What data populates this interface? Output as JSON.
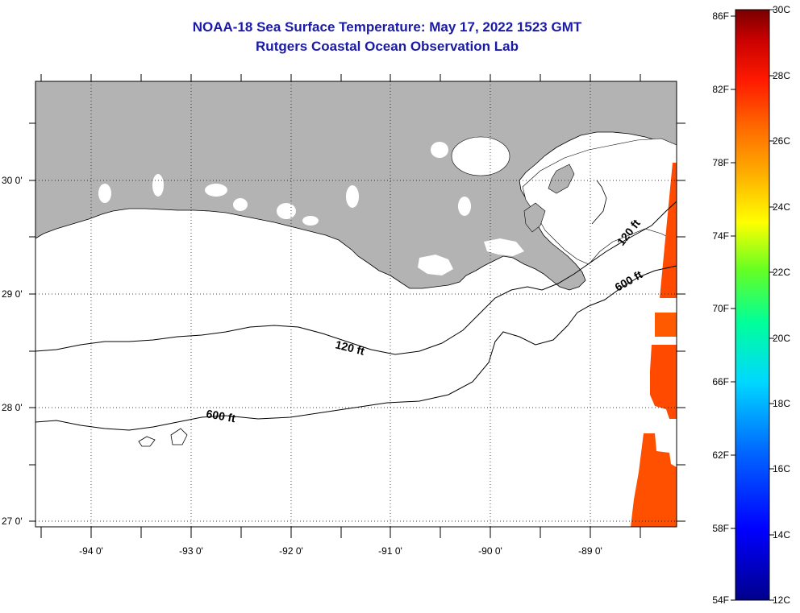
{
  "title": "NOAA-18 Sea Surface Temperature:  May 17, 2022 1523 GMT",
  "subtitle": "Rutgers Coastal Ocean Observation Lab",
  "map": {
    "lon_labels": [
      "-94 0'",
      "-93 0'",
      "-92 0'",
      "-91 0'",
      "-90 0'",
      "-89 0'"
    ],
    "lat_labels": [
      "30 0'",
      "29 0'",
      "28 0'",
      "27 0'"
    ],
    "contour_labels": [
      "120 ft",
      "120 ft",
      "600 ft",
      "600 ft"
    ],
    "land_color": "#b3b3b3",
    "sst_color": "#ff4a00"
  },
  "colorbar": {
    "f_labels": [
      "86F",
      "82F",
      "78F",
      "74F",
      "70F",
      "66F",
      "62F",
      "58F",
      "54F"
    ],
    "c_labels": [
      "30C",
      "28C",
      "26C",
      "24C",
      "22C",
      "20C",
      "18C",
      "16C",
      "14C",
      "12C"
    ]
  }
}
